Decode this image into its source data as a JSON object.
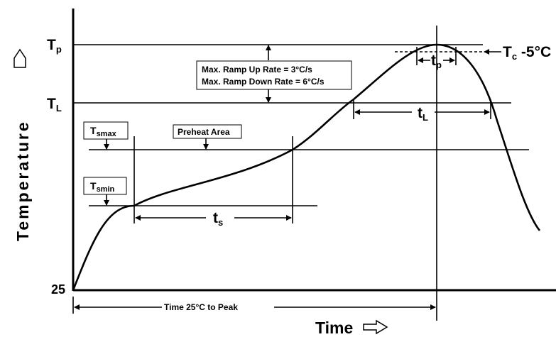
{
  "y_axis": {
    "title": "Temperature",
    "labels": {
      "tp": {
        "main": "T",
        "sub": "p"
      },
      "tl": {
        "main": "T",
        "sub": "L"
      },
      "origin": "25"
    }
  },
  "x_axis": {
    "title": "Time"
  },
  "ramp_box": {
    "line1": "Max. Ramp Up Rate = 3°C/s",
    "line2": "Max. Ramp Down Rate = 6°C/s"
  },
  "preheat_area": "Preheat Area",
  "tsmax": {
    "main": "T",
    "sub": "smax"
  },
  "tsmin": {
    "main": "T",
    "sub": "smin"
  },
  "ts": {
    "main": "t",
    "sub": "s"
  },
  "tl_span": {
    "main": "t",
    "sub": "L"
  },
  "tp_span": {
    "main": "t",
    "sub": "p"
  },
  "tc": {
    "main": "T",
    "sub": "c",
    "suffix": " -5°C"
  },
  "time_to_peak": "Time 25°C to Peak"
}
